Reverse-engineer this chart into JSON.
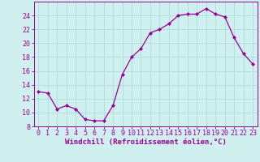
{
  "x": [
    0,
    1,
    2,
    3,
    4,
    5,
    6,
    7,
    8,
    9,
    10,
    11,
    12,
    13,
    14,
    15,
    16,
    17,
    18,
    19,
    20,
    21,
    22,
    23
  ],
  "y": [
    13.0,
    12.8,
    10.5,
    11.0,
    10.5,
    9.0,
    8.8,
    8.8,
    11.0,
    15.5,
    18.0,
    19.2,
    21.5,
    22.0,
    22.8,
    24.0,
    24.2,
    24.2,
    25.0,
    24.2,
    23.8,
    20.8,
    18.5,
    17.0
  ],
  "line_color": "#990099",
  "marker": "D",
  "marker_size": 2.0,
  "bg_color": "#d0f0f0",
  "grid_color": "#aadddd",
  "xlabel": "Windchill (Refroidissement éolien,°C)",
  "xlabel_fontsize": 6.5,
  "tick_fontsize": 6.0,
  "ylim": [
    8,
    26
  ],
  "yticks": [
    8,
    10,
    12,
    14,
    16,
    18,
    20,
    22,
    24
  ],
  "xlim": [
    -0.5,
    23.5
  ],
  "xticks": [
    0,
    1,
    2,
    3,
    4,
    5,
    6,
    7,
    8,
    9,
    10,
    11,
    12,
    13,
    14,
    15,
    16,
    17,
    18,
    19,
    20,
    21,
    22,
    23
  ]
}
